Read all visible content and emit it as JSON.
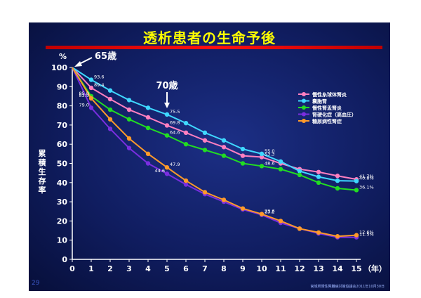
{
  "slide": {
    "title": "透析患者の生命予後",
    "page_number": "29",
    "footnote": "宮城県慢性腎臓病対策協議会2011年10月30日"
  },
  "chart_data": {
    "type": "line",
    "title": "透析患者の生命予後",
    "xlabel": "（年）",
    "ylabel": "累積生存率",
    "yunit": "%",
    "xlim": [
      0,
      15
    ],
    "ylim": [
      0,
      100
    ],
    "x": [
      0,
      1,
      2,
      3,
      4,
      5,
      6,
      7,
      8,
      9,
      10,
      11,
      12,
      13,
      14,
      15
    ],
    "xticks": [
      "0",
      "1",
      "2",
      "3",
      "4",
      "5",
      "6",
      "7",
      "8",
      "9",
      "10",
      "11",
      "12",
      "13",
      "14",
      "15"
    ],
    "yticks": [
      "0",
      "10",
      "20",
      "30",
      "40",
      "50",
      "60",
      "70",
      "80",
      "90",
      "100"
    ],
    "legend_position": "right",
    "series": [
      {
        "name": "慢性糸球体腎炎",
        "color": "#ff7fc0",
        "values": [
          100,
          89.4,
          83.5,
          78,
          74,
          69.8,
          66,
          62,
          58.5,
          54,
          53.3,
          50,
          47,
          45.5,
          43.5,
          41.7
        ]
      },
      {
        "name": "嚢胞腎",
        "color": "#3fd8ff",
        "values": [
          100,
          93.6,
          88,
          83,
          79,
          75.5,
          71,
          66,
          62,
          57.5,
          55.0,
          51,
          46,
          43,
          41,
          40.8
        ]
      },
      {
        "name": "慢性腎盂腎炎",
        "color": "#22dd22",
        "values": [
          100,
          85.0,
          78,
          73,
          68.5,
          64.6,
          60,
          57,
          54,
          50,
          48.6,
          47,
          44,
          40,
          37,
          36.1
        ]
      },
      {
        "name": "腎硬化症（高血圧）",
        "color": "#7a2ee0",
        "values": [
          100,
          79.0,
          68,
          58,
          50,
          44.6,
          39,
          34,
          30,
          26,
          23.2,
          19,
          16,
          13.5,
          11.5,
          11.5
        ]
      },
      {
        "name": "糖尿病性腎症",
        "color": "#ff9a2a",
        "values": [
          100,
          83.9,
          73,
          63,
          55,
          47.9,
          41,
          35,
          31,
          26.5,
          23.6,
          20,
          16,
          14,
          12,
          12.6
        ]
      }
    ],
    "data_labels": [
      {
        "text": "93.6",
        "x": 1,
        "y": 93.6,
        "color": "#ffffff"
      },
      {
        "text": "89.4",
        "x": 1,
        "y": 89.4,
        "color": "#ffffff"
      },
      {
        "text": "85.0",
        "x": 1,
        "y": 85.0,
        "color": "#ffffff",
        "side": "left"
      },
      {
        "text": "83.9",
        "x": 1,
        "y": 83.9,
        "color": "#ffffff",
        "side": "left"
      },
      {
        "text": "79.0",
        "x": 1,
        "y": 79.0,
        "color": "#ffffff",
        "side": "left"
      },
      {
        "text": "75.5",
        "x": 5,
        "y": 75.5,
        "color": "#ffffff"
      },
      {
        "text": "69.8",
        "x": 5,
        "y": 69.8,
        "color": "#ffffff"
      },
      {
        "text": "64.6",
        "x": 5,
        "y": 64.6,
        "color": "#ffffff"
      },
      {
        "text": "47.9",
        "x": 5,
        "y": 47.9,
        "color": "#ffffff"
      },
      {
        "text": "44.6",
        "x": 5,
        "y": 44.6,
        "color": "#ffffff",
        "side": "left"
      },
      {
        "text": "55.0",
        "x": 10,
        "y": 55.0,
        "color": "#ffffff"
      },
      {
        "text": "53.3",
        "x": 10,
        "y": 53.3,
        "color": "#ffffff"
      },
      {
        "text": "48.6",
        "x": 10,
        "y": 48.6,
        "color": "#ffffff"
      },
      {
        "text": "23.6",
        "x": 10,
        "y": 23.6,
        "color": "#ffffff"
      },
      {
        "text": "23.2",
        "x": 10,
        "y": 23.2,
        "color": "#ffffff"
      },
      {
        "text": "41.7%",
        "x": 15,
        "y": 41.7,
        "color": "#ffffff"
      },
      {
        "text": "40.8%",
        "x": 15,
        "y": 40.8,
        "color": "#ffffff"
      },
      {
        "text": "36.1%",
        "x": 15,
        "y": 36.1,
        "color": "#ffffff"
      },
      {
        "text": "12.6%",
        "x": 15,
        "y": 12.6,
        "color": "#ffffff"
      },
      {
        "text": "11.5%",
        "x": 15,
        "y": 11.5,
        "color": "#ffffff"
      }
    ],
    "annotations": [
      {
        "text": "65歳",
        "x": 0,
        "y": 100
      },
      {
        "text": "70歳",
        "x": 5,
        "y": 100
      }
    ]
  }
}
